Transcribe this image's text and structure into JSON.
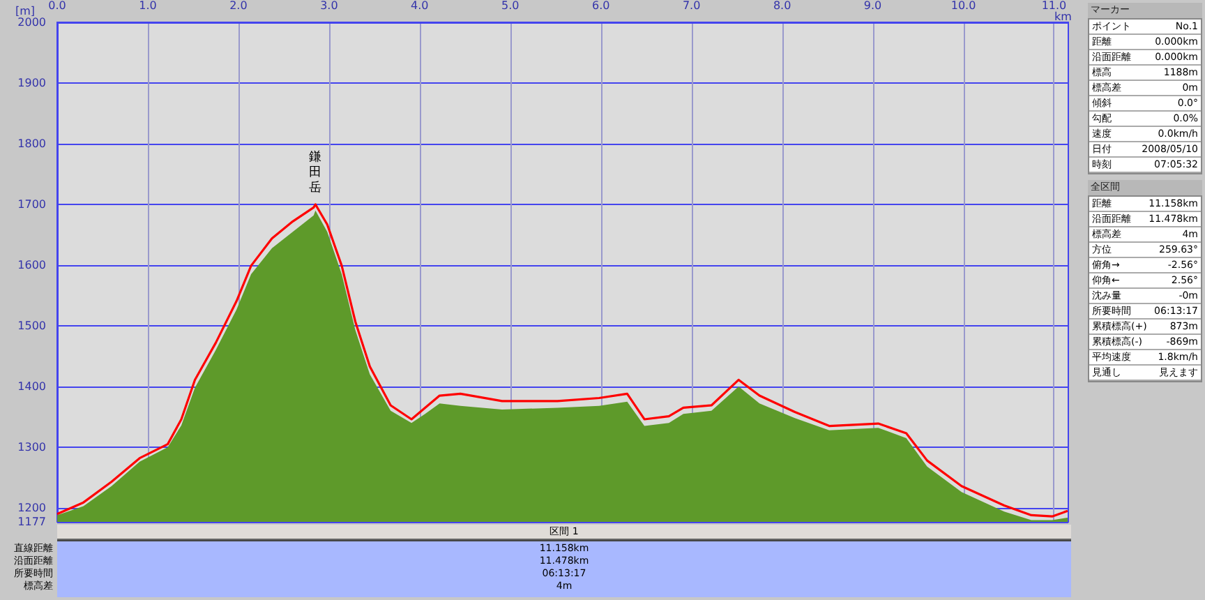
{
  "chart_data": [
    {
      "type": "area",
      "xlabel": "km",
      "ylabel": "[m]",
      "x": [
        0,
        0.29,
        0.6,
        0.91,
        1.22,
        1.37,
        1.52,
        1.75,
        1.98,
        2.14,
        2.37,
        2.6,
        2.83,
        2.85,
        2.98,
        3.14,
        3.29,
        3.45,
        3.68,
        3.91,
        4.06,
        4.22,
        4.45,
        4.91,
        5.52,
        5.98,
        6.29,
        6.48,
        6.75,
        6.91,
        7.22,
        7.52,
        7.75,
        8.14,
        8.52,
        9.06,
        9.37,
        9.6,
        9.98,
        10.45,
        10.75,
        10.98,
        11.15
      ],
      "series": [
        {
          "type": "area",
          "color": "#5e9a2a",
          "values": [
            1188,
            1203,
            1236,
            1276,
            1300,
            1336,
            1398,
            1460,
            1527,
            1585,
            1628,
            1655,
            1682,
            1690,
            1655,
            1585,
            1493,
            1420,
            1360,
            1340,
            1355,
            1372,
            1368,
            1362,
            1365,
            1368,
            1375,
            1335,
            1340,
            1355,
            1360,
            1400,
            1372,
            1348,
            1328,
            1332,
            1315,
            1268,
            1226,
            1194,
            1180,
            1180,
            1184
          ]
        },
        {
          "type": "line",
          "color": "#ff0000",
          "values": [
            1190,
            1209,
            1243,
            1282,
            1305,
            1346,
            1411,
            1472,
            1541,
            1599,
            1644,
            1672,
            1695,
            1700,
            1667,
            1599,
            1507,
            1433,
            1369,
            1346,
            1365,
            1385,
            1388,
            1376,
            1376,
            1381,
            1388,
            1346,
            1351,
            1365,
            1369,
            1411,
            1385,
            1358,
            1335,
            1339,
            1323,
            1278,
            1236,
            1204,
            1188,
            1186,
            1195
          ]
        }
      ],
      "xlim": [
        0,
        11.158
      ],
      "xticks": [
        {
          "value": 0,
          "label": "0.0"
        },
        {
          "value": 1,
          "label": "1.0"
        },
        {
          "value": 2,
          "label": "2.0"
        },
        {
          "value": 3,
          "label": "3.0"
        },
        {
          "value": 4,
          "label": "4.0"
        },
        {
          "value": 5,
          "label": "5.0"
        },
        {
          "value": 6,
          "label": "6.0"
        },
        {
          "value": 7,
          "label": "7.0"
        },
        {
          "value": 8,
          "label": "8.0"
        },
        {
          "value": 9,
          "label": "9.0"
        },
        {
          "value": 10,
          "label": "10.0"
        },
        {
          "value": 11,
          "label": "11.0"
        }
      ],
      "ylim": [
        1177,
        2000
      ],
      "yticks": [
        1177,
        1200,
        1300,
        1400,
        1500,
        1600,
        1700,
        1800,
        1900,
        2000
      ],
      "grid": true,
      "line_style": "solid",
      "annotations": [
        {
          "text": "鎌田岳",
          "x": 2.85,
          "y": 1700
        }
      ]
    },
    {
      "type": "other",
      "title": "マーカー",
      "categories": [
        "ポイント",
        "距離",
        "沿面距離",
        "標高",
        "標高差",
        "傾斜",
        "勾配",
        "速度",
        "日付",
        "時刻"
      ],
      "value_labels": [
        "No.1",
        "0.000km",
        "0.000km",
        "1188m",
        "0m",
        "0.0°",
        "0.0%",
        "0.0km/h",
        "2008/05/10",
        "07:05:32"
      ]
    },
    {
      "type": "other",
      "title": "全区間",
      "categories": [
        "距離",
        "沿面距離",
        "標高差",
        "方位",
        "俯角→",
        "仰角←",
        "沈み量",
        "所要時間",
        "累積標高(+)",
        "累積標高(-)",
        "平均速度",
        "見通し"
      ],
      "value_labels": [
        "11.158km",
        "11.478km",
        "4m",
        "259.63°",
        "-2.56°",
        "2.56°",
        "-0m",
        "06:13:17",
        "873m",
        "-869m",
        "1.8km/h",
        "見えます"
      ]
    },
    {
      "type": "other",
      "title": "区間 1",
      "categories": [
        "直線距離",
        "沿面距離",
        "所要時間",
        "標高差"
      ],
      "value_labels": [
        "11.158km",
        "11.478km",
        "06:13:17",
        "4m"
      ]
    }
  ]
}
